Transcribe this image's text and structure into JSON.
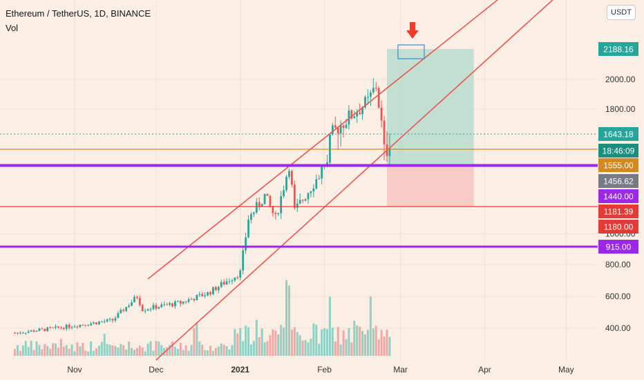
{
  "header": {
    "symbol": "Ethereum / TetherUS, 1D, BINANCE",
    "indicator": "Vol"
  },
  "colors": {
    "background": "#fbeee4",
    "up": "#26a69a",
    "down": "#ef5350",
    "vol_up": "#94cfc3",
    "vol_down": "#f1a8a5",
    "channel": "#ef5350",
    "level_purple": "#9c27e8",
    "level_red": "#e53935",
    "level_orange": "#d2891f",
    "target_zone": "#b7dccf",
    "stop_zone": "#f5c4bf",
    "last_price": "#26a69a",
    "arrow": "#f23a2a"
  },
  "chart_data": {
    "type": "candlestick",
    "title": "Ethereum / TetherUS, 1D, BINANCE",
    "currency": "USDT",
    "x_ticks": [
      "Nov",
      "Dec",
      "2021",
      "Feb",
      "Mar",
      "Apr",
      "May"
    ],
    "y_ticks": [
      "400.00",
      "600.00",
      "800.00",
      "1000.00",
      "1800.00",
      "2000.00"
    ],
    "price_path": [
      [
        "2020-10-10",
        370
      ],
      [
        "2020-10-25",
        400
      ],
      [
        "2020-11-15",
        450
      ],
      [
        "2020-11-24",
        600
      ],
      [
        "2020-11-26",
        520
      ],
      [
        "2020-12-10",
        560
      ],
      [
        "2020-12-20",
        620
      ],
      [
        "2021-01-01",
        750
      ],
      [
        "2021-01-04",
        1100
      ],
      [
        "2021-01-10",
        1250
      ],
      [
        "2021-01-14",
        1100
      ],
      [
        "2021-01-19",
        1450
      ],
      [
        "2021-01-21",
        1150
      ],
      [
        "2021-01-30",
        1380
      ],
      [
        "2021-02-04",
        1650
      ],
      [
        "2021-02-10",
        1750
      ],
      [
        "2021-02-17",
        1850
      ],
      [
        "2021-02-20",
        1960
      ],
      [
        "2021-02-23",
        1580
      ],
      [
        "2021-02-25",
        1643
      ]
    ],
    "horizontal_levels": [
      {
        "price": 1555,
        "label": "1555.00",
        "color": "purple"
      },
      {
        "price": 1440,
        "label": "1440.00",
        "color": "purple"
      },
      {
        "price": 1180,
        "label": "1180.00",
        "color": "red"
      },
      {
        "price": 915,
        "label": "915.00",
        "color": "purple"
      },
      {
        "price": 1600,
        "label": "18:46:09",
        "color": "orange"
      }
    ],
    "price_labels": [
      "2188.16",
      "1643.18",
      "18:46:09",
      "1555.00",
      "1456.62",
      "1440.00",
      "1181.39",
      "1180.00",
      "915.00"
    ],
    "last_price": 1643.18,
    "countdown": "18:46:09",
    "target_price": 2188.16,
    "position": {
      "entry": 1555,
      "target": 2188.16,
      "stop": 1181.39,
      "start": "2021-02-24",
      "end": "2021-03-28"
    },
    "channel": {
      "upper": [
        [
          "2020-11-28",
          710
        ],
        [
          "2021-04-28",
          3000
        ]
      ],
      "lower": [
        [
          "2020-12-01",
          200
        ],
        [
          "2021-05-01",
          2700
        ]
      ]
    },
    "volume": "yes",
    "legend": "top-left"
  }
}
